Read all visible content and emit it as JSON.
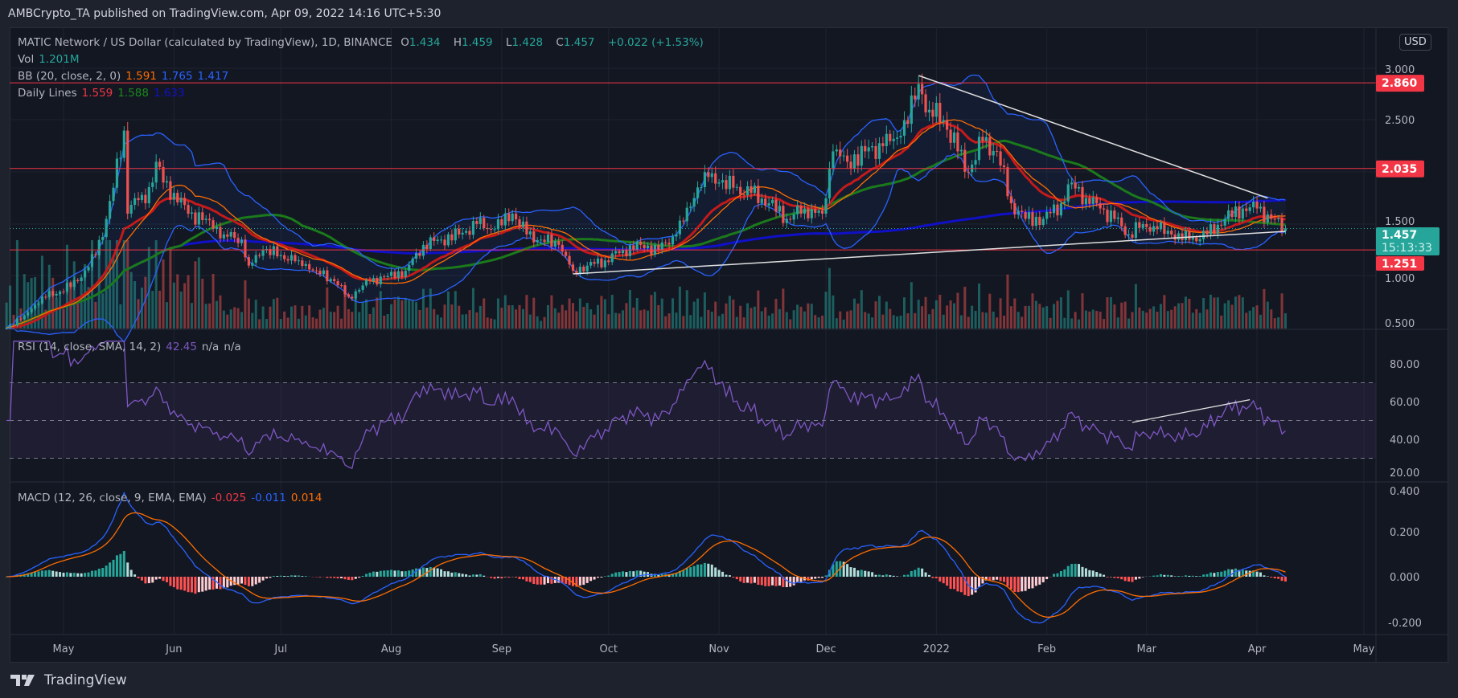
{
  "publish_line": "AMBCrypto_TA published on TradingView.com, Apr 09, 2022 14:16 UTC+5:30",
  "symbol": {
    "title": "MATIC Network / US Dollar (calculated by TradingView), 1D, BINANCE",
    "o_label": "O",
    "o": "1.434",
    "h_label": "H",
    "h": "1.459",
    "l_label": "L",
    "l": "1.428",
    "c_label": "C",
    "c": "1.457",
    "change": "+0.022 (+1.53%)"
  },
  "legends": {
    "vol": {
      "label": "Vol",
      "value": "1.201M"
    },
    "bb": {
      "label": "BB (20, close, 2, 0)",
      "basis": "1.591",
      "upper": "1.765",
      "lower": "1.417"
    },
    "daily_lines": {
      "label": "Daily Lines",
      "v1": "1.559",
      "v2": "1.588",
      "v3": "1.633"
    },
    "rsi": {
      "label": "RSI (14, close, SMA, 14, 2)",
      "value": "42.45",
      "na1": "n/a",
      "na2": "n/a"
    },
    "macd": {
      "label": "MACD (12, 26, close, 9, EMA, EMA)",
      "hist": "-0.025",
      "macd": "-0.011",
      "signal": "0.014"
    }
  },
  "currency_button": "USD",
  "price_axis": {
    "ticks": [
      "3.000",
      "2.500",
      "1.500",
      "1.000",
      "0.500"
    ]
  },
  "rsi_axis": {
    "ticks": [
      "80.00",
      "60.00",
      "40.00",
      "20.00"
    ]
  },
  "macd_axis": {
    "ticks": [
      "0.400",
      "0.200",
      "0.000",
      "-0.200"
    ]
  },
  "time_axis": {
    "labels": [
      "May",
      "Jun",
      "Jul",
      "Aug",
      "Sep",
      "Oct",
      "Nov",
      "Dec",
      "2022",
      "Feb",
      "Mar",
      "Apr",
      "May"
    ]
  },
  "levels": [
    {
      "price": 2.86,
      "label": "2.860"
    },
    {
      "price": 2.035,
      "label": "2.035"
    },
    {
      "price": 1.251,
      "label": "1.251"
    }
  ],
  "last_price": {
    "value": "1.457",
    "countdown": "15:13:33"
  },
  "colors": {
    "up": "#26a69a",
    "down": "#ef5350",
    "level": "#f23645",
    "bb": "#2962ff",
    "bb_basis": "#ff6d00",
    "dl1": "#c41a1a",
    "dl2": "#1b7a1b",
    "dl3": "#1010c8",
    "rsi": "#7e57c2",
    "macd": "#2962ff",
    "signal": "#ff6d00",
    "trendline": "#e0e0e0"
  },
  "logo_text": "TradingView",
  "chart_data": {
    "type": "candlestick",
    "symbol": "MATICUSD",
    "timeframe": "1D",
    "ylim": [
      0.47,
      3.1
    ],
    "rsi_bands": [
      70,
      50,
      30
    ],
    "rsi_ylim": [
      15,
      95
    ],
    "macd_ylim": [
      -0.25,
      0.42
    ],
    "trendlines": [
      {
        "from": [
          "2021-12-27",
          2.93
        ],
        "to": [
          "2022-04-04",
          1.75
        ]
      },
      {
        "from": [
          "2021-09-21",
          1.02
        ],
        "to": [
          "2022-04-09",
          1.43
        ]
      }
    ],
    "rsi_trendline": {
      "from": [
        "2022-02-25",
        49
      ],
      "to": [
        "2022-03-30",
        61
      ]
    },
    "closes": [
      [
        "2021-04-15",
        0.5
      ],
      [
        "2021-04-20",
        0.62
      ],
      [
        "2021-04-25",
        0.8
      ],
      [
        "2021-04-30",
        0.85
      ],
      [
        "2021-05-05",
        0.95
      ],
      [
        "2021-05-10",
        1.2
      ],
      [
        "2021-05-13",
        1.55
      ],
      [
        "2021-05-15",
        1.85
      ],
      [
        "2021-05-18",
        2.4
      ],
      [
        "2021-05-19",
        1.6
      ],
      [
        "2021-05-21",
        1.75
      ],
      [
        "2021-05-24",
        1.7
      ],
      [
        "2021-05-27",
        2.1
      ],
      [
        "2021-05-29",
        1.9
      ],
      [
        "2021-06-01",
        1.8
      ],
      [
        "2021-06-05",
        1.6
      ],
      [
        "2021-06-10",
        1.55
      ],
      [
        "2021-06-15",
        1.4
      ],
      [
        "2021-06-20",
        1.35
      ],
      [
        "2021-06-22",
        1.1
      ],
      [
        "2021-06-26",
        1.25
      ],
      [
        "2021-07-01",
        1.2
      ],
      [
        "2021-07-06",
        1.15
      ],
      [
        "2021-07-11",
        1.05
      ],
      [
        "2021-07-16",
        0.95
      ],
      [
        "2021-07-20",
        0.8
      ],
      [
        "2021-07-22",
        0.85
      ],
      [
        "2021-07-26",
        0.95
      ],
      [
        "2021-07-31",
        1.0
      ],
      [
        "2021-08-05",
        1.05
      ],
      [
        "2021-08-10",
        1.3
      ],
      [
        "2021-08-15",
        1.35
      ],
      [
        "2021-08-20",
        1.4
      ],
      [
        "2021-08-25",
        1.5
      ],
      [
        "2021-08-30",
        1.45
      ],
      [
        "2021-09-04",
        1.6
      ],
      [
        "2021-09-08",
        1.4
      ],
      [
        "2021-09-12",
        1.35
      ],
      [
        "2021-09-17",
        1.3
      ],
      [
        "2021-09-21",
        1.05
      ],
      [
        "2021-09-25",
        1.1
      ],
      [
        "2021-09-30",
        1.15
      ],
      [
        "2021-10-05",
        1.25
      ],
      [
        "2021-10-10",
        1.3
      ],
      [
        "2021-10-15",
        1.25
      ],
      [
        "2021-10-20",
        1.4
      ],
      [
        "2021-10-25",
        1.75
      ],
      [
        "2021-10-28",
        2.0
      ],
      [
        "2021-11-01",
        1.9
      ],
      [
        "2021-11-05",
        1.85
      ],
      [
        "2021-11-10",
        1.8
      ],
      [
        "2021-11-15",
        1.7
      ],
      [
        "2021-11-20",
        1.55
      ],
      [
        "2021-11-25",
        1.65
      ],
      [
        "2021-11-30",
        1.6
      ],
      [
        "2021-12-03",
        2.2
      ],
      [
        "2021-12-07",
        2.1
      ],
      [
        "2021-12-12",
        2.2
      ],
      [
        "2021-12-17",
        2.25
      ],
      [
        "2021-12-22",
        2.35
      ],
      [
        "2021-12-26",
        2.7
      ],
      [
        "2021-12-27",
        2.85
      ],
      [
        "2021-12-30",
        2.6
      ],
      [
        "2022-01-03",
        2.5
      ],
      [
        "2022-01-07",
        2.2
      ],
      [
        "2022-01-10",
        2.0
      ],
      [
        "2022-01-14",
        2.3
      ],
      [
        "2022-01-18",
        2.2
      ],
      [
        "2022-01-22",
        1.7
      ],
      [
        "2022-01-26",
        1.55
      ],
      [
        "2022-01-31",
        1.55
      ],
      [
        "2022-02-05",
        1.7
      ],
      [
        "2022-02-08",
        1.9
      ],
      [
        "2022-02-12",
        1.75
      ],
      [
        "2022-02-16",
        1.65
      ],
      [
        "2022-02-20",
        1.55
      ],
      [
        "2022-02-24",
        1.4
      ],
      [
        "2022-02-28",
        1.5
      ],
      [
        "2022-03-04",
        1.45
      ],
      [
        "2022-03-08",
        1.4
      ],
      [
        "2022-03-13",
        1.35
      ],
      [
        "2022-03-18",
        1.4
      ],
      [
        "2022-03-23",
        1.55
      ],
      [
        "2022-03-28",
        1.65
      ],
      [
        "2022-04-01",
        1.65
      ],
      [
        "2022-04-05",
        1.55
      ],
      [
        "2022-04-09",
        1.457
      ]
    ]
  }
}
